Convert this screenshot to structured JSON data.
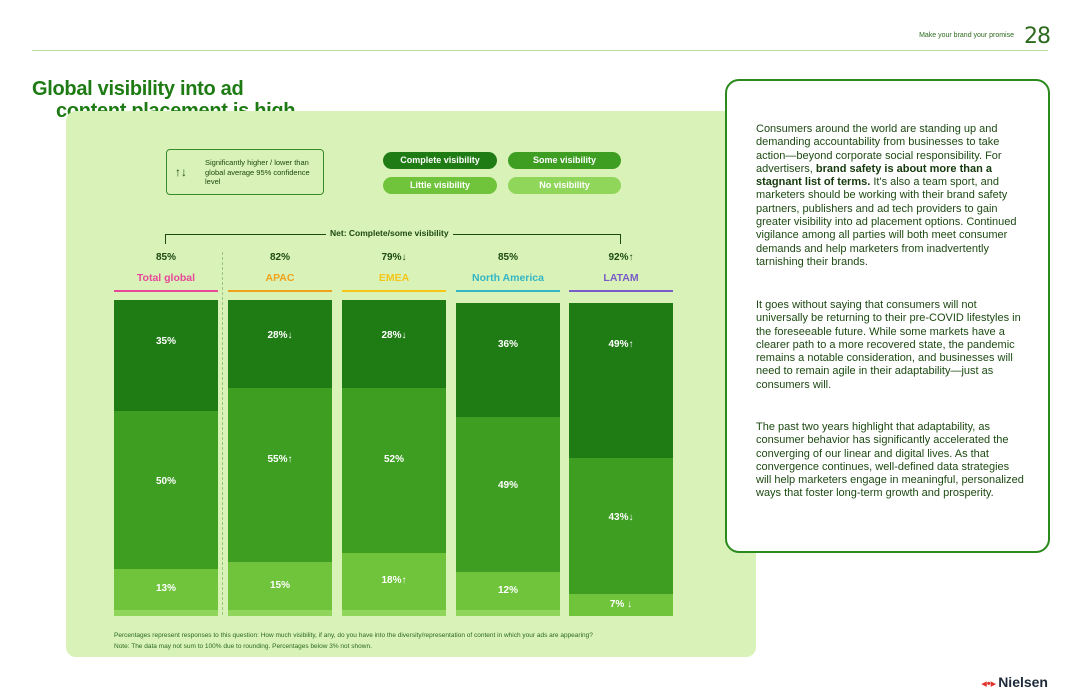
{
  "header": {
    "tag": "Make your brand your promise",
    "page_number": "28"
  },
  "title": {
    "line1": "Global visibility into ad",
    "line2": "content placement is high"
  },
  "legend": {
    "significance_arrows": "↑↓",
    "significance_text": "Significantly higher / lower than global average 95% confidence level",
    "complete": "Complete visibility",
    "some": "Some visibility",
    "little": "Little visibility",
    "none": "No visibility"
  },
  "net_label": "Net: Complete/some visibility",
  "colors": {
    "complete": "#1f7b14",
    "some": "#3e9e22",
    "little": "#6fc43b",
    "none": "#8fd65a",
    "total_global": "#e8479a",
    "apac": "#f0a21a",
    "emea": "#f5c518",
    "north_america": "#33b6c6",
    "latam": "#7a5cc8"
  },
  "chart_data": {
    "type": "bar",
    "stacked": true,
    "categories": [
      "Total global",
      "APAC",
      "EMEA",
      "North America",
      "LATAM"
    ],
    "net_values": [
      "85%",
      "82%",
      "79%↓",
      "85%",
      "92%↑"
    ],
    "series": [
      {
        "name": "Complete visibility",
        "values": [
          35,
          28,
          28,
          36,
          49
        ],
        "labels": [
          "35%",
          "28%↓",
          "28%↓",
          "36%",
          "49%↑"
        ]
      },
      {
        "name": "Some visibility",
        "values": [
          50,
          55,
          52,
          49,
          43
        ],
        "labels": [
          "50%",
          "55%↑",
          "52%",
          "49%",
          "43%↓"
        ]
      },
      {
        "name": "Little visibility",
        "values": [
          13,
          15,
          18,
          12,
          7
        ],
        "labels": [
          "13%",
          "15%",
          "18%↑",
          "12%",
          "7% ↓"
        ]
      },
      {
        "name": "No visibility",
        "values": [
          2,
          2,
          2,
          2,
          0
        ],
        "labels": [
          "",
          "",
          "",
          "",
          ""
        ]
      }
    ],
    "ylim": [
      0,
      100
    ]
  },
  "footnote": {
    "line1": "Percentages represent responses to this question: How much visibility, if any, do you have into the diversity/representation of content in which your ads are appearing?",
    "line2": "Note: The data may not sum to 100% due to rounding. Percentages below 3% not shown."
  },
  "body_text": {
    "p1_a": "Consumers around the world are standing up and demanding accountability from businesses to take action—beyond corporate social responsibility. For advertisers, ",
    "p1_bold": "brand safety is about more than a stagnant list of terms.",
    "p1_b": " It's also a team sport, and marketers should be working with their brand safety partners, publishers and ad tech providers to gain greater visibility into ad placement options. Continued vigilance among all parties will both meet consumer demands and help marketers from inadvertently tarnishing their brands.",
    "p2": "It goes without saying that consumers will not universally be returning to their pre-COVID lifestyles in the foreseeable future. While some markets have a clearer path to a more recovered state, the pandemic remains a notable consideration, and businesses will need to remain agile in their adaptability—just as consumers will.",
    "p3": "The past two years highlight that adaptability, as consumer behavior has significantly accelerated the converging of our linear and digital lives. As that convergence continues, well-defined data strategies will help marketers engage in meaningful, personalized ways that foster long-term growth and prosperity."
  },
  "logo": {
    "mark": "◂•▸",
    "text": "Nielsen"
  }
}
